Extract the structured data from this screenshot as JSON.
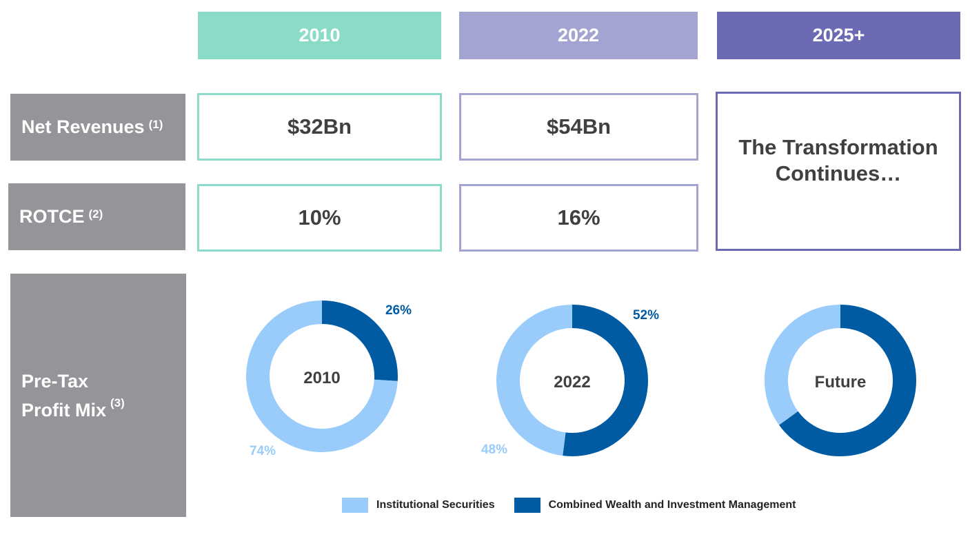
{
  "columns": [
    {
      "label": "2010",
      "color": "#8adbc8"
    },
    {
      "label": "2022",
      "color": "#a4a4d2"
    },
    {
      "label": "2025+",
      "color": "#6b6bb5"
    }
  ],
  "rows": {
    "net_revenues": {
      "label": "Net Revenues",
      "note": "(1)"
    },
    "rotce": {
      "label": "ROTCE",
      "note": "(2)"
    },
    "pretax": {
      "label_line1": "Pre-Tax",
      "label_line2": "Profit Mix",
      "note": "(3)"
    }
  },
  "values": {
    "net_revenues_2010": "$32Bn",
    "net_revenues_2022": "$54Bn",
    "rotce_2010": "10%",
    "rotce_2022": "16%",
    "future_line1": "The Transformation",
    "future_line2": "Continues…"
  },
  "chart_data": [
    {
      "type": "pie",
      "center_label": "2010",
      "series": [
        {
          "name": "Institutional Securities",
          "value": 74,
          "label": "74%",
          "color": "#99ccfa"
        },
        {
          "name": "Combined Wealth and Investment Management",
          "value": 26,
          "label": "26%",
          "color": "#005ba3"
        }
      ]
    },
    {
      "type": "pie",
      "center_label": "2022",
      "series": [
        {
          "name": "Institutional Securities",
          "value": 48,
          "label": "48%",
          "color": "#99ccfa"
        },
        {
          "name": "Combined Wealth and Investment Management",
          "value": 52,
          "label": "52%",
          "color": "#005ba3"
        }
      ]
    },
    {
      "type": "pie",
      "center_label": "Future",
      "series": [
        {
          "name": "Institutional Securities",
          "value": 35,
          "label": "",
          "color": "#99ccfa"
        },
        {
          "name": "Combined Wealth and Investment Management",
          "value": 65,
          "label": "",
          "color": "#005ba3"
        }
      ]
    }
  ],
  "legend": [
    {
      "label": "Institutional Securities",
      "color": "#99ccfa"
    },
    {
      "label": "Combined Wealth and Investment Management",
      "color": "#005ba3"
    }
  ]
}
